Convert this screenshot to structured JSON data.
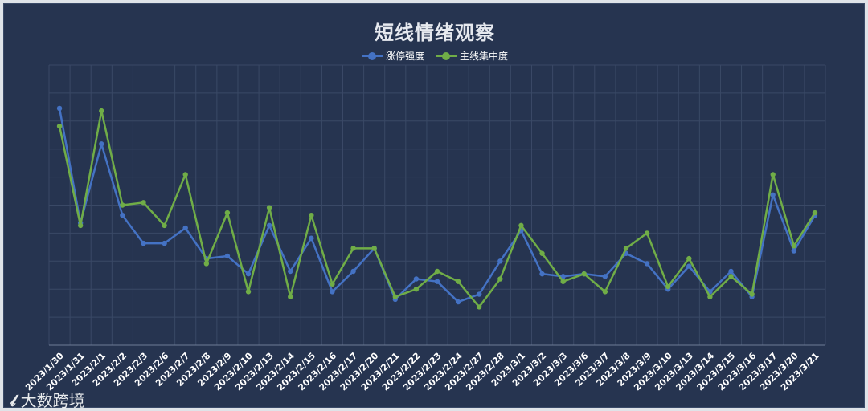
{
  "chart_data": {
    "type": "line",
    "title": "短线情绪观察",
    "categories": [
      "2023/1/30",
      "2023/1/31",
      "2023/2/1",
      "2023/2/2",
      "2023/2/3",
      "2023/2/6",
      "2023/2/7",
      "2023/2/8",
      "2023/2/9",
      "2023/2/10",
      "2023/2/13",
      "2023/2/14",
      "2023/2/15",
      "2023/2/16",
      "2023/2/17",
      "2023/2/20",
      "2023/2/21",
      "2023/2/22",
      "2023/2/23",
      "2023/2/24",
      "2023/2/27",
      "2023/2/28",
      "2023/3/1",
      "2023/3/2",
      "2023/3/3",
      "2023/3/6",
      "2023/3/7",
      "2023/3/8",
      "2023/3/9",
      "2023/3/10",
      "2023/3/13",
      "2023/3/14",
      "2023/3/15",
      "2023/3/16",
      "2023/3/17",
      "2023/3/20",
      "2023/3/21"
    ],
    "series": [
      {
        "name": "涨停强度",
        "color": "#4472c4",
        "values": [
          93,
          48,
          79,
          51,
          40,
          40,
          46,
          34,
          35,
          28,
          47,
          29,
          42,
          21,
          29,
          38,
          18,
          26,
          25,
          17,
          20,
          33,
          45,
          28,
          27,
          28,
          27,
          36,
          32,
          22,
          31,
          21,
          29,
          19,
          59,
          37,
          51
        ]
      },
      {
        "name": "主线集中度",
        "color": "#70ad47",
        "values": [
          86,
          47,
          92,
          55,
          56,
          47,
          67,
          32,
          52,
          21,
          54,
          19,
          51,
          24,
          38,
          38,
          19,
          22,
          29,
          25,
          15,
          26,
          47,
          36,
          25,
          28,
          21,
          38,
          44,
          23,
          34,
          19,
          27,
          20,
          67,
          39,
          52
        ]
      }
    ],
    "ylim": [
      0,
      110
    ],
    "grid": true,
    "legend": "top-center"
  },
  "watermark": "大数跨境"
}
